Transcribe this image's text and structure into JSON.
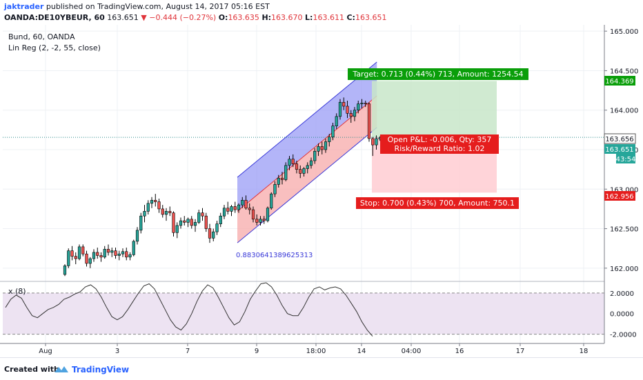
{
  "header": {
    "author": "jaktrader",
    "published": "published on TradingView.com, August 14, 2017 05:16 EST",
    "symbol_line": "OANDA:DE10YBEUR, 60",
    "last": "163.651",
    "change_arrow": "▼",
    "change": "−0.444 (−0.27%)",
    "o_label": "O:",
    "o_value": "163.635",
    "h_label": "H:",
    "h_value": "163.670",
    "l_label": "L:",
    "l_value": "163.611",
    "c_label": "C:",
    "c_value": "163.651"
  },
  "chart": {
    "symbol_title": "Bund, 60, OANDA",
    "indicator_title": "Lin Reg (2, -2, 55, close)",
    "osc_title": "x (8)"
  },
  "footer": {
    "created_with": "Created with",
    "brand": "TradingView"
  },
  "colors": {
    "up": "#26a69a",
    "down": "#ef5350",
    "candle_body": "#000000",
    "channel_upper": "#9a9cf5",
    "channel_lower": "#f7a9a9",
    "channel_line": "#3838d8",
    "target": "#0a9e0a",
    "stop": "#e51d1d",
    "accent": "#2962ff"
  },
  "chart_data": {
    "type": "candlestick",
    "x_tick_labels": [
      "Aug",
      "3",
      "7",
      "9",
      "18:00",
      "14",
      "04:00",
      "16",
      "17",
      "18"
    ],
    "y_tick_labels": [
      "162.000",
      "162.500",
      "163.000",
      "163.500",
      "164.000",
      "164.500",
      "165.000"
    ],
    "ylim": [
      161.85,
      165.08
    ],
    "price_labels": {
      "target": "164.369",
      "last": "163.656",
      "current": "163.651",
      "countdown": "43:54",
      "stop": "162.956"
    },
    "osc_ticks": [
      "2.0000",
      "0.0000",
      "-2.0000"
    ],
    "osc_ylim": [
      -2.9,
      3.0
    ],
    "channel_label": "0.8830641389625313",
    "target_box": "Target: 0.713 (0.44%) 713, Amount: 1254.54",
    "pnl_box": "Open P&L: -0.006, Qty: 357",
    "rr_box": "Risk/Reward Ratio: 1.02",
    "stop_box": "Stop: 0.700 (0.43%) 700, Amount: 750.1",
    "position": {
      "entry": 163.656,
      "target": 164.369,
      "stop": 162.956
    },
    "regression_channel": {
      "start_price": 162.72,
      "end_price": 164.18,
      "upper_offset": 0.43,
      "lower_offset": -0.4
    },
    "candles": [
      [
        161.92,
        162.05,
        161.9,
        162.03
      ],
      [
        162.03,
        162.25,
        162.0,
        162.22
      ],
      [
        162.22,
        162.28,
        162.1,
        162.15
      ],
      [
        162.15,
        162.2,
        162.05,
        162.12
      ],
      [
        162.12,
        162.3,
        162.1,
        162.27
      ],
      [
        162.27,
        162.3,
        162.15,
        162.18
      ],
      [
        162.18,
        162.22,
        162.02,
        162.06
      ],
      [
        162.06,
        162.14,
        162.0,
        162.12
      ],
      [
        162.12,
        162.24,
        162.08,
        162.2
      ],
      [
        162.2,
        162.26,
        162.12,
        162.16
      ],
      [
        162.16,
        162.2,
        162.08,
        162.14
      ],
      [
        162.14,
        162.28,
        162.12,
        162.24
      ],
      [
        162.24,
        162.3,
        162.16,
        162.2
      ],
      [
        162.2,
        162.26,
        162.14,
        162.22
      ],
      [
        162.22,
        162.26,
        162.12,
        162.16
      ],
      [
        162.16,
        162.22,
        162.1,
        162.18
      ],
      [
        162.18,
        162.25,
        162.14,
        162.21
      ],
      [
        162.21,
        162.26,
        162.1,
        162.14
      ],
      [
        162.14,
        162.2,
        162.1,
        162.17
      ],
      [
        162.17,
        162.36,
        162.15,
        162.34
      ],
      [
        162.34,
        162.52,
        162.3,
        162.48
      ],
      [
        162.48,
        162.7,
        162.44,
        162.66
      ],
      [
        162.66,
        162.8,
        162.58,
        162.72
      ],
      [
        162.72,
        162.86,
        162.68,
        162.82
      ],
      [
        162.82,
        162.9,
        162.76,
        162.86
      ],
      [
        162.86,
        162.94,
        162.78,
        162.84
      ],
      [
        162.84,
        162.88,
        162.7,
        162.75
      ],
      [
        162.75,
        162.8,
        162.64,
        162.68
      ],
      [
        162.68,
        162.76,
        162.6,
        162.72
      ],
      [
        162.72,
        162.78,
        162.66,
        162.7
      ],
      [
        162.7,
        162.72,
        162.4,
        162.45
      ],
      [
        162.45,
        162.58,
        162.38,
        162.54
      ],
      [
        162.54,
        162.64,
        162.5,
        162.6
      ],
      [
        162.6,
        162.66,
        162.54,
        162.58
      ],
      [
        162.58,
        162.64,
        162.52,
        162.62
      ],
      [
        162.62,
        162.66,
        162.5,
        162.54
      ],
      [
        162.54,
        162.62,
        162.46,
        162.58
      ],
      [
        162.58,
        162.74,
        162.56,
        162.7
      ],
      [
        162.7,
        162.76,
        162.6,
        162.66
      ],
      [
        162.66,
        162.7,
        162.46,
        162.5
      ],
      [
        162.5,
        162.56,
        162.32,
        162.38
      ],
      [
        162.38,
        162.5,
        162.34,
        162.46
      ],
      [
        162.46,
        162.6,
        162.42,
        162.56
      ],
      [
        162.56,
        162.7,
        162.52,
        162.66
      ],
      [
        162.66,
        162.8,
        162.62,
        162.76
      ],
      [
        162.76,
        162.84,
        162.68,
        162.72
      ],
      [
        162.72,
        162.8,
        162.66,
        162.78
      ],
      [
        162.78,
        162.84,
        162.7,
        162.74
      ],
      [
        162.74,
        162.82,
        162.7,
        162.8
      ],
      [
        162.8,
        162.9,
        162.76,
        162.86
      ],
      [
        162.86,
        162.92,
        162.74,
        162.76
      ],
      [
        162.76,
        162.82,
        162.68,
        162.74
      ],
      [
        162.74,
        162.78,
        162.58,
        162.62
      ],
      [
        162.62,
        162.68,
        162.54,
        162.58
      ],
      [
        162.58,
        162.66,
        162.54,
        162.62
      ],
      [
        162.62,
        162.66,
        162.56,
        162.6
      ],
      [
        162.6,
        162.78,
        162.58,
        162.76
      ],
      [
        162.76,
        162.96,
        162.74,
        162.94
      ],
      [
        162.94,
        163.1,
        162.9,
        163.06
      ],
      [
        163.06,
        163.18,
        163.02,
        163.14
      ],
      [
        163.14,
        163.22,
        163.06,
        163.12
      ],
      [
        163.12,
        163.34,
        163.1,
        163.3
      ],
      [
        163.3,
        163.42,
        163.24,
        163.38
      ],
      [
        163.38,
        163.44,
        163.28,
        163.32
      ],
      [
        163.32,
        163.36,
        163.2,
        163.25
      ],
      [
        163.25,
        163.3,
        163.14,
        163.2
      ],
      [
        163.2,
        163.28,
        163.16,
        163.26
      ],
      [
        163.26,
        163.34,
        163.2,
        163.3
      ],
      [
        163.3,
        163.4,
        163.26,
        163.36
      ],
      [
        163.36,
        163.52,
        163.32,
        163.48
      ],
      [
        163.48,
        163.58,
        163.42,
        163.54
      ],
      [
        163.54,
        163.6,
        163.44,
        163.5
      ],
      [
        163.5,
        163.64,
        163.46,
        163.6
      ],
      [
        163.6,
        163.7,
        163.54,
        163.66
      ],
      [
        163.66,
        163.84,
        163.62,
        163.8
      ],
      [
        163.8,
        163.96,
        163.76,
        163.92
      ],
      [
        163.92,
        164.14,
        163.88,
        164.1
      ],
      [
        164.1,
        164.16,
        164.0,
        164.05
      ],
      [
        164.05,
        164.12,
        163.9,
        163.96
      ],
      [
        163.96,
        164.0,
        163.84,
        163.92
      ],
      [
        163.92,
        164.04,
        163.86,
        164.0
      ],
      [
        164.0,
        164.12,
        163.96,
        164.08
      ],
      [
        164.08,
        164.14,
        164.02,
        164.09
      ],
      [
        164.09,
        164.12,
        164.04,
        164.08
      ],
      [
        164.08,
        164.1,
        163.6,
        163.64
      ],
      [
        163.64,
        163.66,
        163.42,
        163.56
      ],
      [
        163.56,
        163.68,
        163.5,
        163.64
      ],
      [
        163.635,
        163.67,
        163.611,
        163.651
      ]
    ],
    "oscillator": [
      0.6,
      1.4,
      1.8,
      1.5,
      0.6,
      -0.2,
      -0.4,
      0.0,
      0.4,
      0.6,
      0.9,
      1.4,
      1.6,
      1.9,
      2.1,
      2.6,
      2.8,
      2.4,
      1.6,
      0.6,
      -0.3,
      -0.6,
      -0.3,
      0.4,
      1.2,
      2.0,
      2.7,
      2.9,
      2.4,
      1.4,
      0.4,
      -0.6,
      -1.3,
      -1.6,
      -1.0,
      0.0,
      1.2,
      2.2,
      2.8,
      2.5,
      1.6,
      0.6,
      -0.4,
      -1.1,
      -0.8,
      0.2,
      1.4,
      2.2,
      2.9,
      3.0,
      2.6,
      1.8,
      0.8,
      0.0,
      -0.2,
      -0.2,
      0.6,
      1.6,
      2.4,
      2.6,
      2.3,
      2.5,
      2.6,
      2.4,
      1.8,
      1.0,
      0.2,
      -0.8,
      -1.6,
      -2.2
    ]
  }
}
